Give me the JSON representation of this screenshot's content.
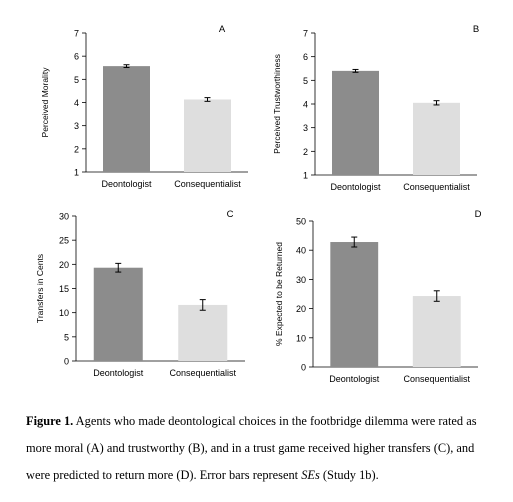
{
  "charts": [
    {
      "panel": "A",
      "type": "bar",
      "ylabel": "Perceived Morality",
      "ylim": [
        1,
        7
      ],
      "yticks": [
        1,
        2,
        3,
        4,
        5,
        6,
        7
      ],
      "categories": [
        "Deontologist",
        "Consequentialist"
      ],
      "values": [
        5.57,
        4.13
      ],
      "errors": [
        0.06,
        0.08
      ],
      "colors": [
        "#8c8c8c",
        "#dedede"
      ]
    },
    {
      "panel": "B",
      "type": "bar",
      "ylabel": "Perceived Trustworthiness",
      "ylim": [
        1,
        7
      ],
      "yticks": [
        1,
        2,
        3,
        4,
        5,
        6,
        7
      ],
      "categories": [
        "Deontologist",
        "Consequentialist"
      ],
      "values": [
        5.4,
        4.05
      ],
      "errors": [
        0.06,
        0.09
      ],
      "colors": [
        "#8c8c8c",
        "#dedede"
      ]
    },
    {
      "panel": "C",
      "type": "bar",
      "ylabel": "Transfers in Cents",
      "ylim": [
        0,
        30
      ],
      "yticks": [
        0,
        5,
        10,
        15,
        20,
        25,
        30
      ],
      "categories": [
        "Deontologist",
        "Consequentialist"
      ],
      "values": [
        19.3,
        11.6
      ],
      "errors": [
        0.9,
        1.1
      ],
      "colors": [
        "#8c8c8c",
        "#dedede"
      ]
    },
    {
      "panel": "D",
      "type": "bar",
      "ylabel": "% Expected to be Returned",
      "ylim": [
        0,
        50
      ],
      "yticks": [
        0,
        10,
        20,
        30,
        40,
        50
      ],
      "categories": [
        "Deontologist",
        "Consequentialist"
      ],
      "values": [
        42.8,
        24.3
      ],
      "errors": [
        1.7,
        1.8
      ],
      "colors": [
        "#8c8c8c",
        "#dedede"
      ]
    }
  ],
  "caption": {
    "figure_label": "Figure 1.",
    "text_1": " Agents who made deontological choices in the footbridge dilemma were rated as more moral (A) and trustworthy (B), and in a trust game received higher transfers (C), and were predicted to return more (D). Error bars represent ",
    "ses": "SEs",
    "text_2": " (Study 1b)."
  }
}
